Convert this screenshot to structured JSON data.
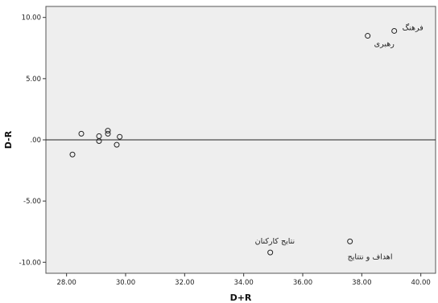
{
  "chart_data": {
    "type": "scatter",
    "xlabel": "D+R",
    "ylabel": "D-R",
    "xlim": [
      27.3,
      40.5
    ],
    "ylim": [
      -10.9,
      10.9
    ],
    "xticks": [
      {
        "value": 28,
        "label": "28.00"
      },
      {
        "value": 30,
        "label": "30.00"
      },
      {
        "value": 32,
        "label": "32.00"
      },
      {
        "value": 34,
        "label": "34.00"
      },
      {
        "value": 36,
        "label": "36.00"
      },
      {
        "value": 38,
        "label": "38.00"
      },
      {
        "value": 40,
        "label": "40.00"
      }
    ],
    "yticks": [
      {
        "value": 10,
        "label": "10.00"
      },
      {
        "value": 5,
        "label": "5.00"
      },
      {
        "value": 0,
        "label": ".00"
      },
      {
        "value": -5,
        "label": "-5.00"
      },
      {
        "value": -10,
        "label": "-10.00"
      }
    ],
    "reference_line_y": 0,
    "grid": false,
    "plot_background": "#eeeeee",
    "marker": "open-circle",
    "points": [
      {
        "x": 39.1,
        "y": 8.9,
        "label": "فرهنگ"
      },
      {
        "x": 38.2,
        "y": 8.5,
        "label": "رهبری"
      },
      {
        "x": 28.2,
        "y": -1.2,
        "label": ""
      },
      {
        "x": 28.5,
        "y": 0.5,
        "label": ""
      },
      {
        "x": 29.1,
        "y": 0.3,
        "label": ""
      },
      {
        "x": 29.1,
        "y": -0.1,
        "label": ""
      },
      {
        "x": 29.4,
        "y": 0.75,
        "label": ""
      },
      {
        "x": 29.4,
        "y": 0.5,
        "label": ""
      },
      {
        "x": 29.7,
        "y": -0.4,
        "label": ""
      },
      {
        "x": 29.8,
        "y": 0.25,
        "label": ""
      },
      {
        "x": 34.9,
        "y": -9.2,
        "label": "نتایج کارکنان"
      },
      {
        "x": 37.6,
        "y": -8.3,
        "label": "اهداف و نتتایج"
      }
    ]
  }
}
